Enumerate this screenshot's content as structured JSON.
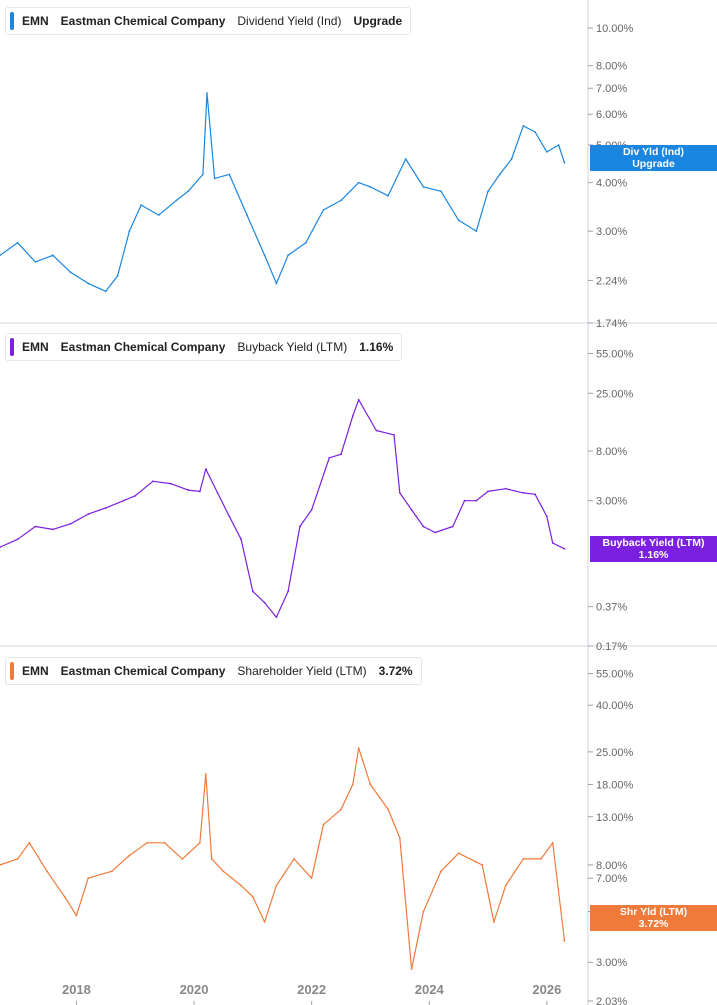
{
  "chart_data": [
    {
      "type": "line",
      "legend": {
        "ticker": "EMN",
        "company": "Eastman Chemical Company",
        "metric": "Dividend Yield (Ind)",
        "value": "Upgrade"
      },
      "color": "#1a86e0",
      "tag_lines": [
        "Div Yld (Ind)",
        "Upgrade"
      ],
      "ylim": [
        1.74,
        11.0
      ],
      "yscale": "log",
      "yticks": [
        "10.00%",
        "8.00%",
        "7.00%",
        "6.00%",
        "5.00%",
        "4.00%",
        "3.00%",
        "2.24%",
        "1.74%"
      ],
      "ytick_values": [
        10,
        8,
        7,
        6,
        5,
        4,
        3,
        2.24,
        1.74
      ],
      "x": [
        2016.7,
        2017.0,
        2017.3,
        2017.6,
        2017.9,
        2018.2,
        2018.5,
        2018.7,
        2018.9,
        2019.1,
        2019.4,
        2019.7,
        2019.9,
        2020.15,
        2020.22,
        2020.35,
        2020.6,
        2020.9,
        2021.2,
        2021.4,
        2021.6,
        2021.9,
        2022.2,
        2022.5,
        2022.8,
        2023.0,
        2023.3,
        2023.6,
        2023.9,
        2024.2,
        2024.5,
        2024.8,
        2025.0,
        2025.2,
        2025.4,
        2025.6,
        2025.8,
        2026.0,
        2026.2,
        2026.3
      ],
      "y": [
        2.6,
        2.8,
        2.5,
        2.6,
        2.35,
        2.2,
        2.1,
        2.3,
        3.0,
        3.5,
        3.3,
        3.6,
        3.8,
        4.2,
        6.8,
        4.1,
        4.2,
        3.3,
        2.6,
        2.2,
        2.6,
        2.8,
        3.4,
        3.6,
        4.0,
        3.9,
        3.7,
        4.6,
        3.9,
        3.8,
        3.2,
        3.0,
        3.8,
        4.2,
        4.6,
        5.6,
        5.4,
        4.8,
        5.0,
        4.5
      ]
    },
    {
      "type": "line",
      "legend": {
        "ticker": "EMN",
        "company": "Eastman Chemical Company",
        "metric": "Buyback Yield (LTM)",
        "value": "1.16%"
      },
      "color": "#7b1fe0",
      "tag_lines": [
        "Buyback Yield (LTM)",
        "1.16%"
      ],
      "ylim": [
        0.17,
        60.0
      ],
      "yscale": "log",
      "yticks": [
        "55.00%",
        "25.00%",
        "8.00%",
        "3.00%",
        "0.37%",
        "0.17%"
      ],
      "ytick_values": [
        55,
        25,
        8,
        3,
        0.37,
        0.17
      ],
      "x": [
        2016.7,
        2017.0,
        2017.3,
        2017.6,
        2017.9,
        2018.2,
        2018.5,
        2018.8,
        2019.0,
        2019.3,
        2019.6,
        2019.9,
        2020.1,
        2020.2,
        2020.4,
        2020.6,
        2020.8,
        2021.0,
        2021.2,
        2021.4,
        2021.6,
        2021.8,
        2022.0,
        2022.3,
        2022.5,
        2022.7,
        2022.8,
        2023.1,
        2023.4,
        2023.5,
        2023.7,
        2023.9,
        2024.1,
        2024.4,
        2024.6,
        2024.8,
        2025.0,
        2025.3,
        2025.6,
        2025.8,
        2026.0,
        2026.1,
        2026.3
      ],
      "y": [
        1.2,
        1.4,
        1.8,
        1.7,
        1.9,
        2.3,
        2.6,
        3.0,
        3.3,
        4.4,
        4.2,
        3.7,
        3.6,
        5.6,
        3.5,
        2.2,
        1.4,
        0.5,
        0.4,
        0.3,
        0.5,
        1.8,
        2.5,
        7.0,
        7.5,
        16.0,
        22.0,
        12.0,
        11.0,
        3.5,
        2.5,
        1.8,
        1.6,
        1.8,
        3.0,
        3.0,
        3.6,
        3.8,
        3.5,
        3.4,
        2.2,
        1.3,
        1.16
      ]
    },
    {
      "type": "line",
      "legend": {
        "ticker": "EMN",
        "company": "Eastman Chemical Company",
        "metric": "Shareholder Yield (LTM)",
        "value": "3.72%"
      },
      "color": "#f07a3a",
      "tag_lines": [
        "Shr Yld (LTM)",
        "3.72%"
      ],
      "ylim": [
        2.03,
        60.0
      ],
      "yscale": "log",
      "yticks": [
        "55.00%",
        "40.00%",
        "25.00%",
        "18.00%",
        "13.00%",
        "8.00%",
        "7.00%",
        "5.00%",
        "3.00%",
        "2.03%"
      ],
      "ytick_values": [
        55,
        40,
        25,
        18,
        13,
        8,
        7,
        5,
        3,
        2.03
      ],
      "x": [
        2016.7,
        2017.0,
        2017.2,
        2017.5,
        2017.8,
        2018.0,
        2018.2,
        2018.6,
        2018.9,
        2019.2,
        2019.5,
        2019.8,
        2020.1,
        2020.2,
        2020.3,
        2020.5,
        2020.8,
        2021.0,
        2021.2,
        2021.4,
        2021.7,
        2022.0,
        2022.2,
        2022.5,
        2022.7,
        2022.8,
        2023.0,
        2023.3,
        2023.5,
        2023.7,
        2023.9,
        2024.2,
        2024.5,
        2024.9,
        2025.1,
        2025.3,
        2025.6,
        2025.9,
        2026.1,
        2026.3
      ],
      "y": [
        8.0,
        8.5,
        10.0,
        7.5,
        5.8,
        4.8,
        7.0,
        7.5,
        8.8,
        10.0,
        10.0,
        8.5,
        10.0,
        20.0,
        8.5,
        7.5,
        6.5,
        5.8,
        4.5,
        6.5,
        8.5,
        7.0,
        12.0,
        14.0,
        18.0,
        26.0,
        18.0,
        14.0,
        10.5,
        2.8,
        5.0,
        7.5,
        9.0,
        8.0,
        4.5,
        6.5,
        8.5,
        8.5,
        10.0,
        3.72
      ]
    }
  ],
  "xaxis": {
    "xlim": [
      2016.7,
      2026.7
    ],
    "ticks": [
      2018,
      2020,
      2022,
      2024,
      2026
    ],
    "tick_labels": [
      "2018",
      "2020",
      "2022",
      "2024",
      "2026"
    ]
  }
}
